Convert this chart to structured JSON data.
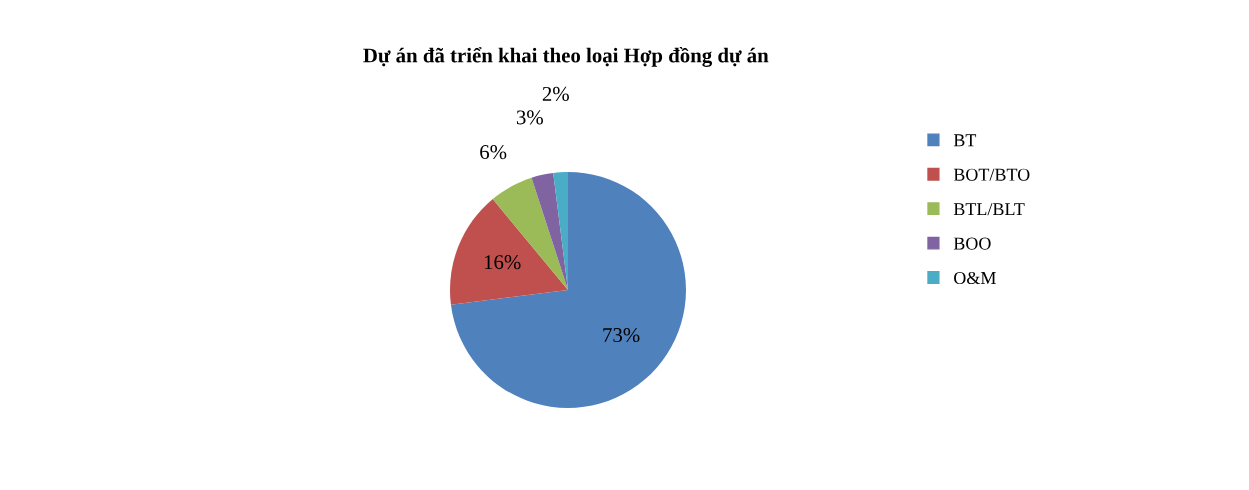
{
  "chart_data": {
    "type": "pie",
    "title": "Dự án đã triển khai theo loại Hợp đồng dự án",
    "categories": [
      "BT",
      "BOT/BTO",
      "BTL/BLT",
      "BOO",
      "O&M"
    ],
    "values": [
      73,
      16,
      6,
      3,
      2
    ],
    "colors": [
      "#4f81bd",
      "#c0504d",
      "#9bbb59",
      "#8064a2",
      "#4bacc6"
    ],
    "value_labels": [
      "73%",
      "16%",
      "6%",
      "3%",
      "2%"
    ],
    "legend": "right"
  }
}
